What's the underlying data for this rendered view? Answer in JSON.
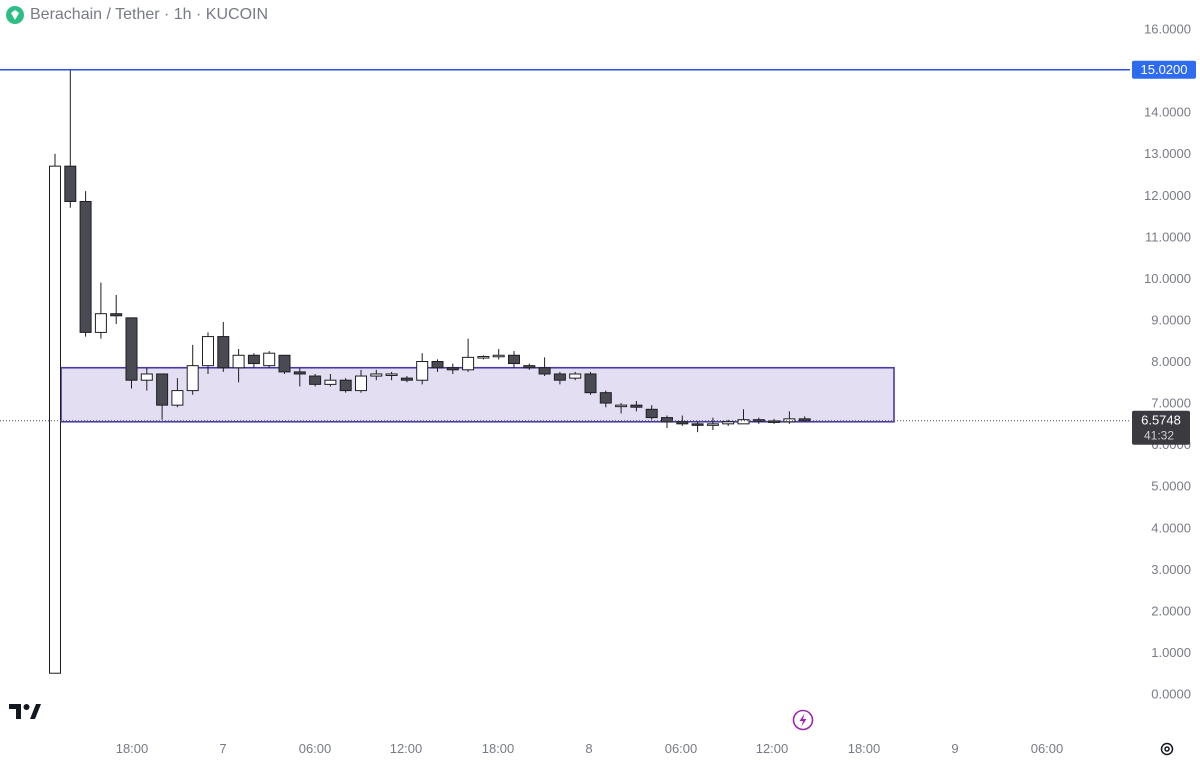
{
  "header": {
    "title": "Berachain / Tether · 1h · KUCOIN",
    "logo_icon": "berachain-logo-icon"
  },
  "colors": {
    "up_body": "#ffffff",
    "down_body": "#4a4a52",
    "candle_outline": "#1e1e24",
    "hline": "#2f4ee6",
    "hline_badge": "#2f6bf0",
    "zone_fill": "#dcd6ef",
    "zone_stroke": "#4a3aa8",
    "last_price_badge": "#3a3a40",
    "axis_text": "#787b86",
    "bolt_icon": "#9c27b0"
  },
  "chart_data": {
    "type": "candlestick",
    "title": "Berachain / Tether · 1h · KUCOIN",
    "ylim": [
      0,
      16
    ],
    "y_ticks": [
      "0.0000",
      "1.0000",
      "2.0000",
      "3.0000",
      "4.0000",
      "5.0000",
      "6.0000",
      "7.0000",
      "8.0000",
      "9.0000",
      "10.0000",
      "11.0000",
      "12.0000",
      "13.0000",
      "14.0000",
      "15.0000",
      "16.0000"
    ],
    "x_ticks": [
      "18:00",
      "7",
      "06:00",
      "12:00",
      "18:00",
      "8",
      "06:00",
      "12:00",
      "18:00",
      "9",
      "06:00"
    ],
    "candles": [
      {
        "o": 0.5,
        "h": 13.0,
        "l": 0.5,
        "c": 12.7
      },
      {
        "o": 12.7,
        "h": 15.02,
        "l": 11.7,
        "c": 11.85
      },
      {
        "o": 11.85,
        "h": 12.1,
        "l": 8.6,
        "c": 8.7
      },
      {
        "o": 8.7,
        "h": 9.9,
        "l": 8.55,
        "c": 9.15
      },
      {
        "o": 9.15,
        "h": 9.6,
        "l": 8.9,
        "c": 9.1
      },
      {
        "o": 9.05,
        "h": 9.05,
        "l": 7.35,
        "c": 7.55
      },
      {
        "o": 7.55,
        "h": 7.85,
        "l": 7.3,
        "c": 7.7
      },
      {
        "o": 7.7,
        "h": 7.7,
        "l": 6.6,
        "c": 6.95
      },
      {
        "o": 6.95,
        "h": 7.6,
        "l": 6.9,
        "c": 7.3
      },
      {
        "o": 7.3,
        "h": 8.4,
        "l": 7.2,
        "c": 7.9
      },
      {
        "o": 7.9,
        "h": 8.7,
        "l": 7.7,
        "c": 8.6
      },
      {
        "o": 8.6,
        "h": 8.95,
        "l": 7.75,
        "c": 7.85
      },
      {
        "o": 7.85,
        "h": 8.3,
        "l": 7.5,
        "c": 8.15
      },
      {
        "o": 8.15,
        "h": 8.2,
        "l": 7.85,
        "c": 7.95
      },
      {
        "o": 7.9,
        "h": 8.25,
        "l": 7.85,
        "c": 8.2
      },
      {
        "o": 8.15,
        "h": 8.15,
        "l": 7.7,
        "c": 7.75
      },
      {
        "o": 7.75,
        "h": 7.85,
        "l": 7.4,
        "c": 7.7
      },
      {
        "o": 7.65,
        "h": 7.7,
        "l": 7.4,
        "c": 7.45
      },
      {
        "o": 7.45,
        "h": 7.7,
        "l": 7.4,
        "c": 7.55
      },
      {
        "o": 7.55,
        "h": 7.6,
        "l": 7.25,
        "c": 7.3
      },
      {
        "o": 7.3,
        "h": 7.8,
        "l": 7.25,
        "c": 7.65
      },
      {
        "o": 7.65,
        "h": 7.8,
        "l": 7.55,
        "c": 7.7
      },
      {
        "o": 7.7,
        "h": 7.75,
        "l": 7.55,
        "c": 7.7
      },
      {
        "o": 7.6,
        "h": 7.65,
        "l": 7.5,
        "c": 7.55
      },
      {
        "o": 7.55,
        "h": 8.2,
        "l": 7.45,
        "c": 8.0
      },
      {
        "o": 8.0,
        "h": 8.05,
        "l": 7.75,
        "c": 7.85
      },
      {
        "o": 7.85,
        "h": 7.95,
        "l": 7.7,
        "c": 7.8
      },
      {
        "o": 7.8,
        "h": 8.55,
        "l": 7.75,
        "c": 8.1
      },
      {
        "o": 8.1,
        "h": 8.15,
        "l": 8.05,
        "c": 8.12
      },
      {
        "o": 8.12,
        "h": 8.3,
        "l": 8.05,
        "c": 8.15
      },
      {
        "o": 8.15,
        "h": 8.25,
        "l": 7.85,
        "c": 7.95
      },
      {
        "o": 7.9,
        "h": 7.95,
        "l": 7.8,
        "c": 7.85
      },
      {
        "o": 7.85,
        "h": 8.1,
        "l": 7.65,
        "c": 7.7
      },
      {
        "o": 7.7,
        "h": 7.75,
        "l": 7.45,
        "c": 7.55
      },
      {
        "o": 7.6,
        "h": 7.75,
        "l": 7.55,
        "c": 7.7
      },
      {
        "o": 7.7,
        "h": 7.75,
        "l": 7.2,
        "c": 7.25
      },
      {
        "o": 7.25,
        "h": 7.3,
        "l": 6.9,
        "c": 7.0
      },
      {
        "o": 6.95,
        "h": 7.0,
        "l": 6.75,
        "c": 6.95
      },
      {
        "o": 6.95,
        "h": 7.05,
        "l": 6.8,
        "c": 6.9
      },
      {
        "o": 6.85,
        "h": 6.95,
        "l": 6.6,
        "c": 6.65
      },
      {
        "o": 6.65,
        "h": 6.7,
        "l": 6.4,
        "c": 6.55
      },
      {
        "o": 6.55,
        "h": 6.7,
        "l": 6.45,
        "c": 6.5
      },
      {
        "o": 6.5,
        "h": 6.55,
        "l": 6.3,
        "c": 6.48
      },
      {
        "o": 6.48,
        "h": 6.65,
        "l": 6.35,
        "c": 6.5
      },
      {
        "o": 6.5,
        "h": 6.6,
        "l": 6.45,
        "c": 6.55
      },
      {
        "o": 6.5,
        "h": 6.85,
        "l": 6.5,
        "c": 6.6
      },
      {
        "o": 6.6,
        "h": 6.65,
        "l": 6.5,
        "c": 6.57
      },
      {
        "o": 6.57,
        "h": 6.62,
        "l": 6.5,
        "c": 6.55
      },
      {
        "o": 6.55,
        "h": 6.8,
        "l": 6.5,
        "c": 6.62
      },
      {
        "o": 6.62,
        "h": 6.68,
        "l": 6.55,
        "c": 6.5748
      }
    ],
    "horizontal_line": {
      "value": 15.02,
      "label": "15.0200"
    },
    "zone": {
      "low": 6.55,
      "high": 7.85
    },
    "last_price": {
      "value": 6.5748,
      "label": "6.5748",
      "countdown": "41:32"
    }
  }
}
